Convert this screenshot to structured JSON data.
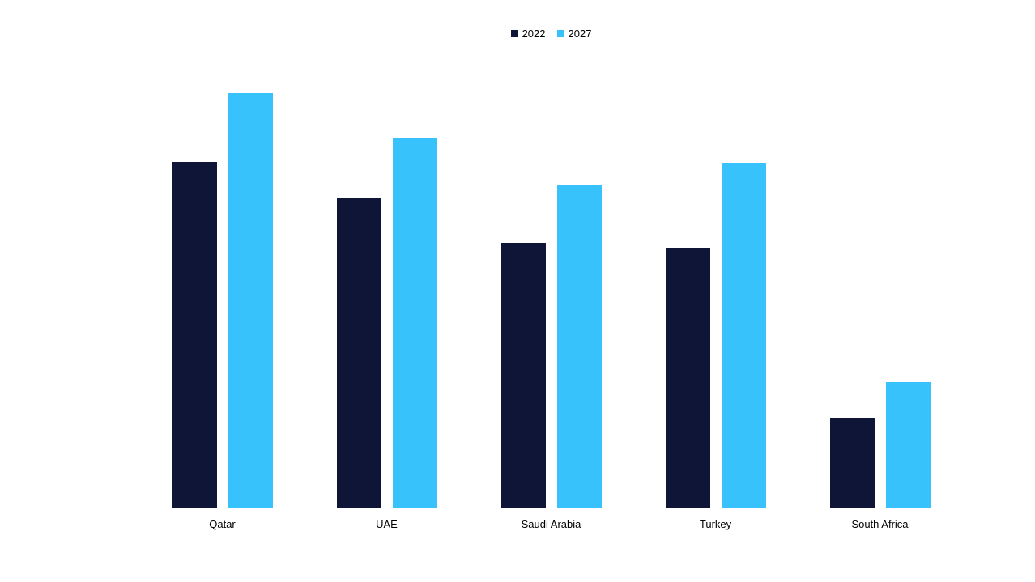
{
  "chart_data": {
    "type": "bar",
    "title": "",
    "xlabel": "",
    "ylabel": "",
    "categories": [
      "Qatar",
      "UAE",
      "Saudi Arabia",
      "Turkey",
      "South Africa"
    ],
    "series": [
      {
        "name": "2022",
        "color": "#0E1536",
        "values": [
          83.4,
          74.8,
          63.9,
          62.7,
          21.7
        ]
      },
      {
        "name": "2027",
        "color": "#38C2FC",
        "values": [
          100,
          89.1,
          77.9,
          83.2,
          30.3
        ]
      }
    ],
    "ylim": [
      0,
      100
    ],
    "value_axis_visible": false,
    "gridlines": false,
    "legend_position": "top",
    "axis_line_color": "#D9D9D9",
    "text_color": "#000000"
  }
}
